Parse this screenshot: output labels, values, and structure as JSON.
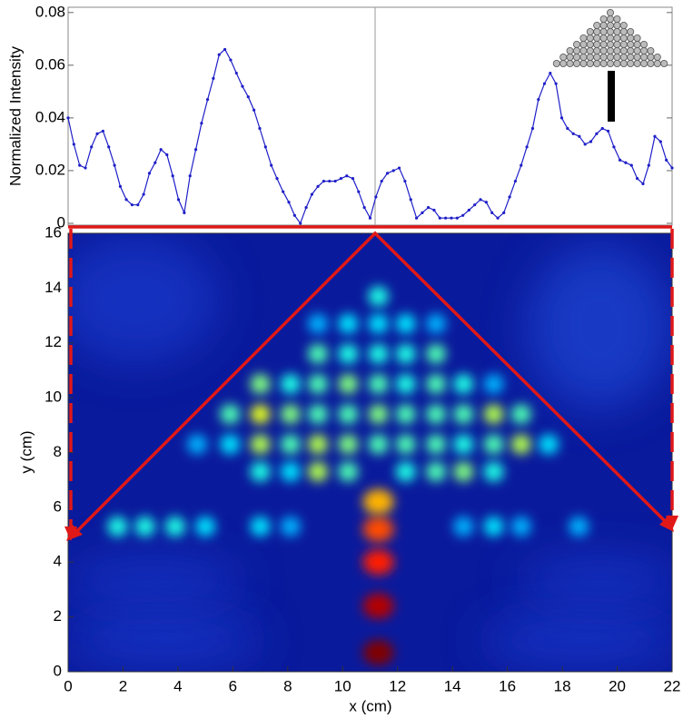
{
  "chart_data": [
    {
      "type": "line",
      "ylabel": "Normalized Intensity",
      "color": "#1f1fc8",
      "xlim": [
        0,
        22
      ],
      "ylim": [
        0,
        0.082
      ],
      "yticks": [
        0,
        0.02,
        0.04,
        0.06,
        0.08
      ],
      "x": [
        0,
        0.21,
        0.42,
        0.63,
        0.85,
        1.06,
        1.27,
        1.48,
        1.69,
        1.9,
        2.12,
        2.33,
        2.54,
        2.75,
        2.96,
        3.17,
        3.38,
        3.6,
        3.81,
        4.02,
        4.23,
        4.44,
        4.65,
        4.86,
        5.08,
        5.29,
        5.5,
        5.71,
        5.92,
        6.13,
        6.35,
        6.56,
        6.77,
        6.98,
        7.19,
        7.4,
        7.61,
        7.83,
        8.04,
        8.25,
        8.46,
        8.67,
        8.88,
        9.1,
        9.31,
        9.52,
        9.73,
        9.94,
        10.15,
        10.37,
        10.58,
        10.79,
        11.0,
        11.21,
        11.42,
        11.63,
        11.85,
        12.06,
        12.27,
        12.48,
        12.69,
        12.9,
        13.12,
        13.33,
        13.54,
        13.75,
        13.96,
        14.17,
        14.38,
        14.6,
        14.81,
        15.02,
        15.23,
        15.44,
        15.65,
        15.87,
        16.08,
        16.29,
        16.5,
        16.71,
        16.92,
        17.13,
        17.35,
        17.56,
        17.77,
        17.98,
        18.19,
        18.4,
        18.62,
        18.83,
        19.04,
        19.25,
        19.46,
        19.67,
        19.88,
        20.1,
        20.31,
        20.52,
        20.73,
        20.94,
        21.15,
        21.37,
        21.58,
        21.79,
        22.0
      ],
      "values": [
        0.04,
        0.03,
        0.022,
        0.021,
        0.029,
        0.034,
        0.035,
        0.029,
        0.022,
        0.014,
        0.009,
        0.007,
        0.007,
        0.011,
        0.019,
        0.023,
        0.028,
        0.026,
        0.018,
        0.009,
        0.004,
        0.018,
        0.028,
        0.038,
        0.047,
        0.055,
        0.064,
        0.066,
        0.062,
        0.057,
        0.052,
        0.048,
        0.043,
        0.036,
        0.029,
        0.022,
        0.017,
        0.012,
        0.008,
        0.003,
        0.0,
        0.006,
        0.011,
        0.014,
        0.016,
        0.016,
        0.016,
        0.017,
        0.018,
        0.017,
        0.012,
        0.006,
        0.002,
        0.01,
        0.016,
        0.019,
        0.02,
        0.021,
        0.016,
        0.009,
        0.002,
        0.004,
        0.006,
        0.005,
        0.002,
        0.002,
        0.002,
        0.002,
        0.003,
        0.005,
        0.007,
        0.009,
        0.008,
        0.004,
        0.002,
        0.004,
        0.01,
        0.016,
        0.022,
        0.029,
        0.036,
        0.047,
        0.053,
        0.057,
        0.053,
        0.04,
        0.036,
        0.034,
        0.033,
        0.03,
        0.031,
        0.034,
        0.036,
        0.035,
        0.029,
        0.024,
        0.023,
        0.022,
        0.017,
        0.015,
        0.022,
        0.033,
        0.031,
        0.024,
        0.021
      ]
    },
    {
      "type": "heatmap",
      "xlabel": "x (cm)",
      "ylabel": "y (cm)",
      "xlim": [
        0,
        22
      ],
      "ylim": [
        0,
        16
      ],
      "xticks": [
        0,
        2,
        4,
        6,
        8,
        10,
        12,
        14,
        16,
        18,
        20,
        22
      ],
      "yticks": [
        0,
        2,
        4,
        6,
        8,
        10,
        12,
        14,
        16
      ],
      "x": [
        11.3,
        11.3,
        11.3,
        11.3,
        11.3,
        1.8,
        2.8,
        3.9,
        5.0,
        7.0,
        8.1,
        14.4,
        15.5,
        16.5,
        18.6,
        7.0,
        8.1,
        9.1,
        10.2,
        12.3,
        13.4,
        14.4,
        15.5,
        4.7,
        5.9,
        7.0,
        8.1,
        9.1,
        10.2,
        11.3,
        12.3,
        13.4,
        14.4,
        15.5,
        16.5,
        17.5,
        5.9,
        7.0,
        8.1,
        9.1,
        10.2,
        11.3,
        12.3,
        13.4,
        14.4,
        15.5,
        16.5,
        7.0,
        8.1,
        9.1,
        10.2,
        11.3,
        12.3,
        13.4,
        14.4,
        15.5,
        9.1,
        10.2,
        11.3,
        12.3,
        13.4,
        9.1,
        10.2,
        11.3,
        12.3,
        13.4,
        11.3
      ],
      "y": [
        0.7,
        2.4,
        4.0,
        5.2,
        6.2,
        5.3,
        5.3,
        5.3,
        5.3,
        5.3,
        5.3,
        5.3,
        5.3,
        5.3,
        5.3,
        7.3,
        7.3,
        7.3,
        7.3,
        7.3,
        7.3,
        7.3,
        7.3,
        8.3,
        8.3,
        8.3,
        8.3,
        8.3,
        8.3,
        8.3,
        8.3,
        8.3,
        8.3,
        8.3,
        8.3,
        8.3,
        9.4,
        9.4,
        9.4,
        9.4,
        9.4,
        9.4,
        9.4,
        9.4,
        9.4,
        9.4,
        9.4,
        10.5,
        10.5,
        10.5,
        10.5,
        10.5,
        10.5,
        10.5,
        10.5,
        10.5,
        11.6,
        11.6,
        11.6,
        11.6,
        11.6,
        12.7,
        12.7,
        12.7,
        12.7,
        12.7,
        13.7
      ],
      "values": [
        1.0,
        0.95,
        0.85,
        0.8,
        0.7,
        0.4,
        0.4,
        0.4,
        0.35,
        0.35,
        0.3,
        0.3,
        0.35,
        0.3,
        0.3,
        0.4,
        0.35,
        0.55,
        0.45,
        0.4,
        0.45,
        0.5,
        0.4,
        0.3,
        0.35,
        0.55,
        0.45,
        0.55,
        0.5,
        0.45,
        0.45,
        0.45,
        0.4,
        0.45,
        0.55,
        0.35,
        0.45,
        0.6,
        0.5,
        0.45,
        0.45,
        0.5,
        0.45,
        0.45,
        0.45,
        0.55,
        0.45,
        0.5,
        0.4,
        0.45,
        0.5,
        0.45,
        0.4,
        0.45,
        0.4,
        0.3,
        0.45,
        0.4,
        0.4,
        0.4,
        0.45,
        0.3,
        0.35,
        0.35,
        0.35,
        0.3,
        0.4
      ]
    }
  ]
}
